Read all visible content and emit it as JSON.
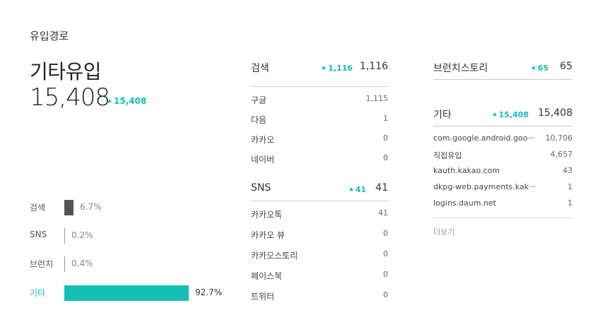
{
  "page_title": "유입경로",
  "main": {
    "label": "기타유입",
    "value": "15,408",
    "delta": "15,408"
  },
  "bars": [
    {
      "label": "검색",
      "pct": "6.7%",
      "fraction": 0.067,
      "color": "#555555",
      "highlight": false
    },
    {
      "label": "SNS",
      "pct": "0.2%",
      "fraction": 0.002,
      "color": "#999999",
      "highlight": false
    },
    {
      "label": "브런치",
      "pct": "0.4%",
      "fraction": 0.004,
      "color": "#999999",
      "highlight": false
    },
    {
      "label": "기타",
      "pct": "92.7%",
      "fraction": 0.927,
      "color": "#12c1b4",
      "highlight": true
    }
  ],
  "search": {
    "name": "검색",
    "delta": "1,116",
    "total": "1,116",
    "items": [
      {
        "label": "구글",
        "value": "1,115"
      },
      {
        "label": "다음",
        "value": "1"
      },
      {
        "label": "카카오",
        "value": "0"
      },
      {
        "label": "네이버",
        "value": "0"
      }
    ]
  },
  "sns": {
    "name": "SNS",
    "delta": "41",
    "total": "41",
    "items": [
      {
        "label": "카카오톡",
        "value": "41"
      },
      {
        "label": "카카오 뷰",
        "value": "0"
      },
      {
        "label": "카카오스토리",
        "value": "0"
      },
      {
        "label": "페이스북",
        "value": "0"
      },
      {
        "label": "트위터",
        "value": "0"
      }
    ]
  },
  "brunch": {
    "name": "브런치스토리",
    "delta": "65",
    "total": "65"
  },
  "etc": {
    "name": "기타",
    "delta": "15,408",
    "total": "15,408",
    "items": [
      {
        "label": "com.google.android.goo···",
        "value": "10,706"
      },
      {
        "label": "직접유입",
        "value": "4,657"
      },
      {
        "label": "kauth.kakao.com",
        "value": "43"
      },
      {
        "label": "dkpg-web.payments.kak···",
        "value": "1"
      },
      {
        "label": "logins.daum.net",
        "value": "1"
      }
    ],
    "more": "더보기"
  },
  "colors": {
    "accent": "#12c1b4"
  }
}
